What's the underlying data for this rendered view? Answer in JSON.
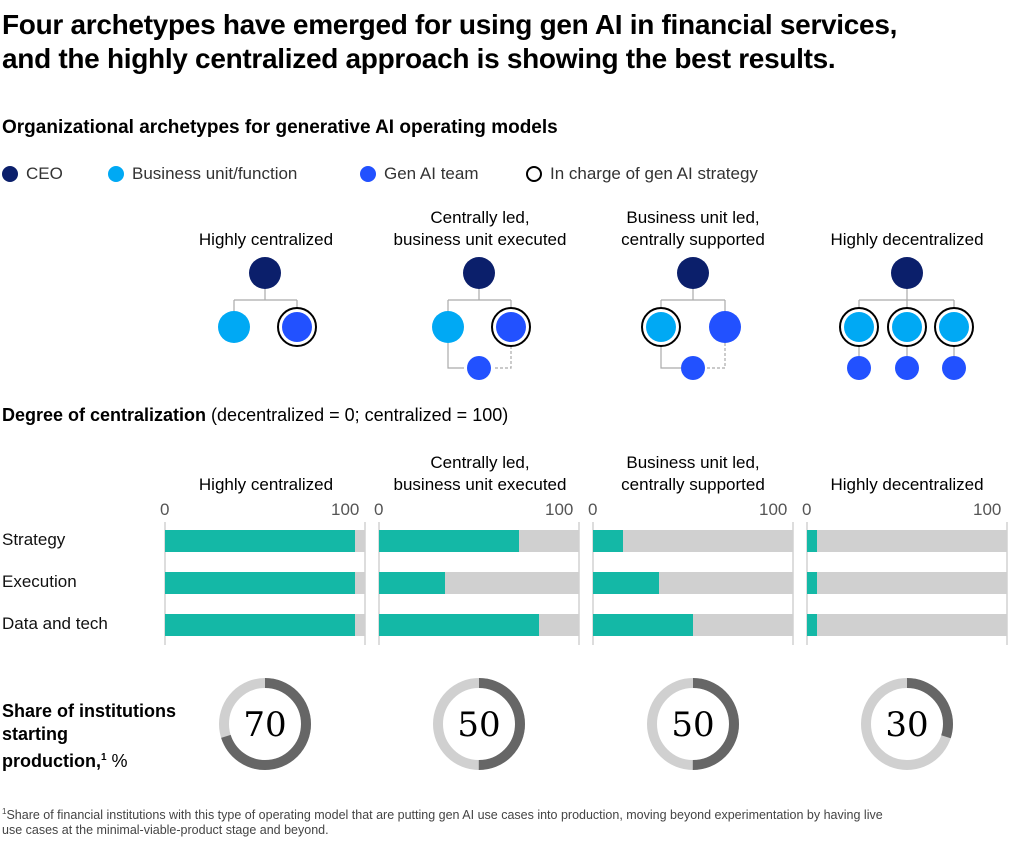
{
  "title_line1": "Four archetypes have emerged for using gen AI in financial services,",
  "title_line2": "and the highly centralized approach is showing the best results.",
  "subtitle": "Organizational archetypes for generative AI operating models",
  "legend": {
    "ceo": {
      "label": "CEO",
      "color": "#0b1f6b"
    },
    "bu": {
      "label": "Business unit/function",
      "color": "#00a9f4"
    },
    "genai": {
      "label": "Gen AI team",
      "color": "#2251ff"
    },
    "charge": {
      "label": "In charge of gen AI strategy"
    }
  },
  "archetypes": [
    {
      "line1": "",
      "line2": "Highly centralized"
    },
    {
      "line1": "Centrally led,",
      "line2": "business unit executed"
    },
    {
      "line1": "Business unit led,",
      "line2": "centrally supported"
    },
    {
      "line1": "",
      "line2": "Highly decentralized"
    }
  ],
  "degree": {
    "label_bold": "Degree of centralization",
    "label_rest": " (decentralized = 0; centralized = 100)"
  },
  "rows": [
    "Strategy",
    "Execution",
    "Data and tech"
  ],
  "axis": {
    "min_label": "0",
    "max_label": "100"
  },
  "share": {
    "label_line1": "Share of institutions",
    "label_line2": "starting",
    "label_line3": "production,",
    "sup": "1",
    "unit": " %"
  },
  "footnote": {
    "sup": "1",
    "line1": "Share of financial institutions with this type of operating model that are putting gen AI use cases into production, moving beyond experimentation by having live",
    "line2": " use cases at the minimal-viable-product stage and beyond."
  },
  "chart_data": {
    "type": "bar",
    "title": "Degree of centralization",
    "xlabel": "",
    "ylabel": "",
    "xlim": [
      0,
      100
    ],
    "categories": [
      "Strategy",
      "Execution",
      "Data and tech"
    ],
    "series": [
      {
        "name": "Highly centralized",
        "values": [
          95,
          95,
          95
        ]
      },
      {
        "name": "Centrally led, business unit executed",
        "values": [
          70,
          33,
          80
        ]
      },
      {
        "name": "Business unit led, centrally supported",
        "values": [
          15,
          33,
          50
        ]
      },
      {
        "name": "Highly decentralized",
        "values": [
          5,
          5,
          5
        ]
      }
    ],
    "bar_color": "#14b8a6",
    "track_color": "#d0d0d0",
    "donut": {
      "type": "pie",
      "categories": [
        "Highly centralized",
        "Centrally led, business unit executed",
        "Business unit led, centrally supported",
        "Highly decentralized"
      ],
      "values": [
        70,
        50,
        50,
        30
      ],
      "labels": [
        "70",
        "50",
        "50",
        "30"
      ],
      "fill_color": "#666666",
      "rest_color": "#d0d0d0"
    }
  }
}
